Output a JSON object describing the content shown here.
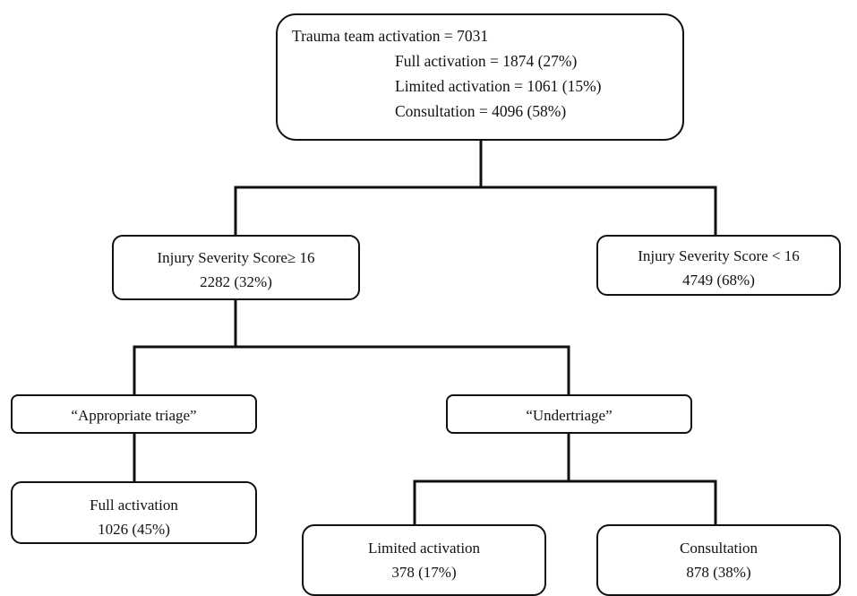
{
  "root": {
    "title": "Trauma team activation = 7031",
    "lines": [
      "Full activation = 1874 (27%)",
      "Limited activation = 1061 (15%)",
      "Consultation = 4096 (58%)"
    ]
  },
  "iss_high": {
    "label": "Injury Severity Score≥ 16",
    "value": "2282 (32%)"
  },
  "iss_low": {
    "label": "Injury Severity Score < 16",
    "value": "4749 (68%)"
  },
  "appropriate_triage": {
    "label": "“Appropriate triage”"
  },
  "undertriage": {
    "label": "“Undertriage”"
  },
  "full_activation": {
    "label": "Full activation",
    "value": "1026 (45%)"
  },
  "limited_activation": {
    "label": "Limited activation",
    "value": "378 (17%)"
  },
  "consultation": {
    "label": "Consultation",
    "value": "878 (38%)"
  },
  "colors": {
    "stroke": "#111111",
    "background": "#ffffff"
  }
}
